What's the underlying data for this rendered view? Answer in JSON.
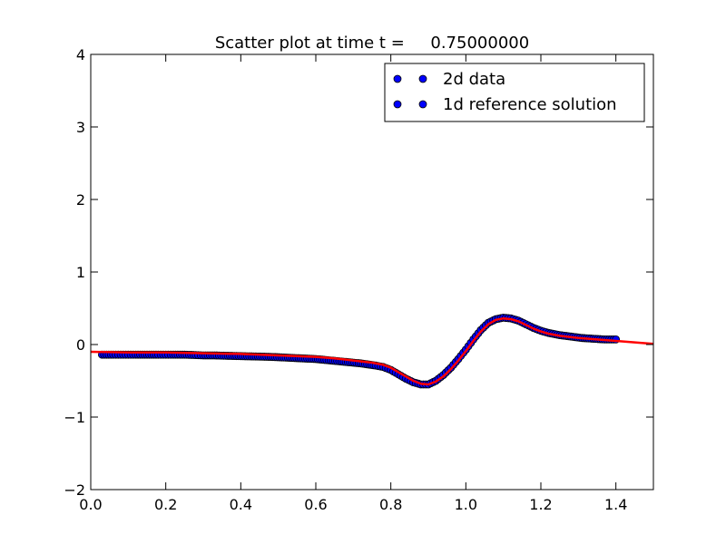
{
  "chart_data": {
    "type": "scatter",
    "title": "Scatter plot at time t =     0.75000000",
    "xlabel": "",
    "ylabel": "",
    "xlim": [
      0.0,
      1.5
    ],
    "ylim": [
      -2,
      4
    ],
    "x_ticks": [
      "0.0",
      "0.2",
      "0.4",
      "0.6",
      "0.8",
      "1.0",
      "1.2",
      "1.4"
    ],
    "y_ticks": [
      "4",
      "3",
      "2",
      "1",
      "0",
      "−1",
      "−2"
    ],
    "grid": false,
    "legend_position": "top-right",
    "series": [
      {
        "name": "2d data",
        "style": "markers",
        "color": "#0000ff",
        "edgecolor": "#000000",
        "x": [
          0.03,
          0.06,
          0.08,
          0.1,
          0.12,
          0.15,
          0.18,
          0.2,
          0.22,
          0.25,
          0.28,
          0.3,
          0.33,
          0.36,
          0.4,
          0.44,
          0.48,
          0.52,
          0.56,
          0.6,
          0.64,
          0.68,
          0.72,
          0.76,
          0.78,
          0.8,
          0.82,
          0.84,
          0.86,
          0.88,
          0.9,
          0.92,
          0.94,
          0.96,
          0.98,
          1.0,
          1.02,
          1.04,
          1.06,
          1.08,
          1.1,
          1.12,
          1.14,
          1.16,
          1.18,
          1.2,
          1.22,
          1.25,
          1.28,
          1.31,
          1.34,
          1.37,
          1.4
        ],
        "y": [
          -0.14,
          -0.14,
          -0.14,
          -0.14,
          -0.14,
          -0.14,
          -0.14,
          -0.14,
          -0.14,
          -0.14,
          -0.145,
          -0.15,
          -0.15,
          -0.155,
          -0.16,
          -0.165,
          -0.17,
          -0.18,
          -0.19,
          -0.2,
          -0.22,
          -0.24,
          -0.26,
          -0.29,
          -0.31,
          -0.35,
          -0.41,
          -0.47,
          -0.52,
          -0.55,
          -0.55,
          -0.5,
          -0.42,
          -0.32,
          -0.2,
          -0.07,
          0.07,
          0.2,
          0.3,
          0.35,
          0.37,
          0.36,
          0.33,
          0.28,
          0.23,
          0.19,
          0.16,
          0.13,
          0.11,
          0.09,
          0.08,
          0.07,
          0.07
        ]
      },
      {
        "name": "1d reference solution",
        "style": "line",
        "color": "#ff0000",
        "x": [
          0.0,
          0.1,
          0.2,
          0.3,
          0.4,
          0.5,
          0.6,
          0.65,
          0.7,
          0.75,
          0.78,
          0.8,
          0.82,
          0.84,
          0.86,
          0.88,
          0.9,
          0.92,
          0.94,
          0.96,
          0.98,
          1.0,
          1.02,
          1.04,
          1.06,
          1.08,
          1.1,
          1.12,
          1.14,
          1.16,
          1.18,
          1.2,
          1.22,
          1.25,
          1.3,
          1.35,
          1.4,
          1.45,
          1.5
        ],
        "y": [
          -0.1,
          -0.11,
          -0.11,
          -0.12,
          -0.13,
          -0.15,
          -0.17,
          -0.19,
          -0.22,
          -0.25,
          -0.28,
          -0.32,
          -0.38,
          -0.44,
          -0.5,
          -0.54,
          -0.55,
          -0.51,
          -0.44,
          -0.34,
          -0.22,
          -0.09,
          0.05,
          0.18,
          0.28,
          0.34,
          0.36,
          0.35,
          0.32,
          0.27,
          0.22,
          0.18,
          0.15,
          0.12,
          0.09,
          0.07,
          0.05,
          0.03,
          0.01
        ]
      }
    ]
  }
}
